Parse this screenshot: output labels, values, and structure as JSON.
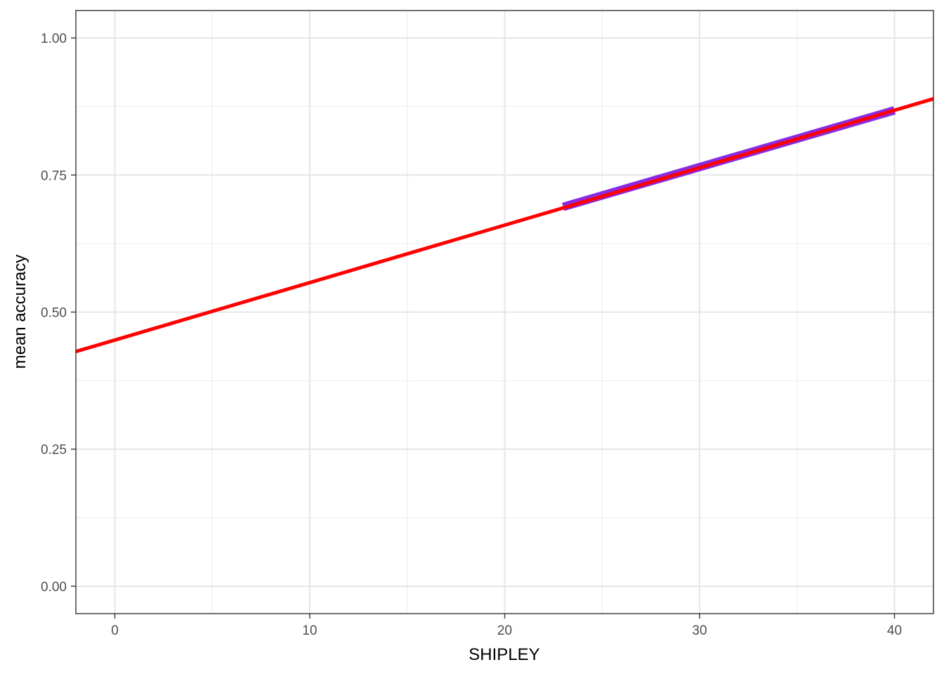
{
  "chart_data": {
    "type": "line",
    "title": "",
    "xlabel": "SHIPLEY",
    "ylabel": "mean accuracy",
    "xlim": [
      -2,
      42
    ],
    "ylim": [
      -0.05,
      1.05
    ],
    "x_ticks": [
      0,
      10,
      20,
      30,
      40
    ],
    "x_tick_labels": [
      "0",
      "10",
      "20",
      "30",
      "40"
    ],
    "y_ticks": [
      0.0,
      0.25,
      0.5,
      0.75,
      1.0
    ],
    "y_tick_labels": [
      "0.00",
      "0.25",
      "0.50",
      "0.75",
      "1.00"
    ],
    "grid": true,
    "legend": "none",
    "series": [
      {
        "color": "#8a2be2",
        "x": [
          23,
          40
        ],
        "y": [
          0.692,
          0.868
        ]
      },
      {
        "color": "#ff0000",
        "x": [
          -2,
          42
        ],
        "y": [
          0.428,
          0.889
        ]
      }
    ]
  }
}
